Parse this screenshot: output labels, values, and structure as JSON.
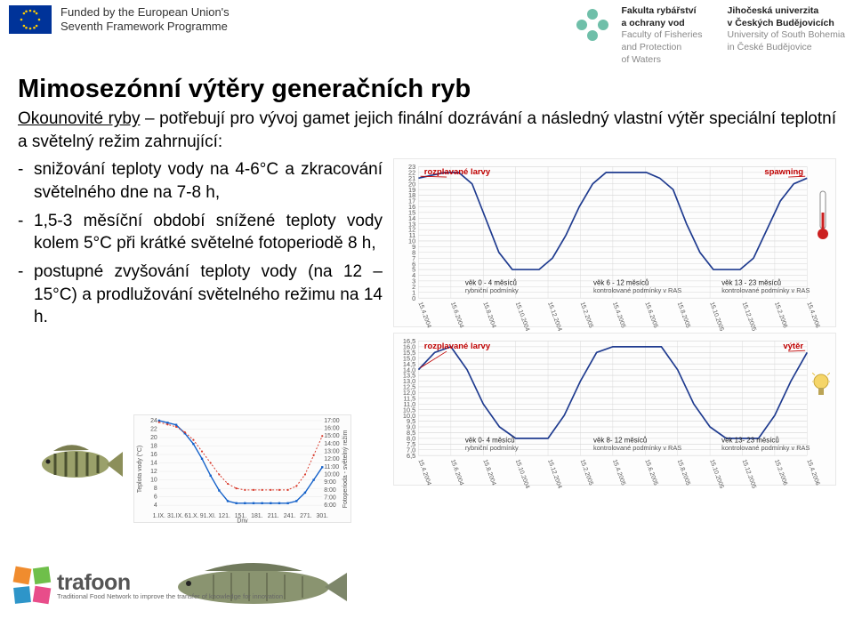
{
  "header": {
    "funded_line1": "Funded by the European Union's",
    "funded_line2": "Seventh Framework Programme",
    "col1_cz1": "Fakulta rybářství",
    "col1_cz2": "a ochrany vod",
    "col1_en1": "Faculty of Fisheries",
    "col1_en2": "and Protection",
    "col1_en3": "of Waters",
    "col2_cz1": "Jihočeská univerzita",
    "col2_cz2": "v Českých Budějovicích",
    "col2_en1": "University of South Bohemia",
    "col2_en2": "in České Budějovice"
  },
  "title": "Mimosezónní výtěry generačních ryb",
  "intro_underline": "Okounovité ryby",
  "intro_rest": " – potřebují pro vývoj gamet jejich finální dozrávání a následný vlastní výtěr speciální teplotní a světelný režim zahrnující:",
  "bullets": [
    "snižování teploty vody na 4-6°C a zkracování světelného dne na 7-8 h,",
    "1,5-3 měsíční období snížené teploty vody kolem 5°C při krátké světelné fotoperiodě 8 h,",
    "postupné zvyšování teploty vody (na 12 – 15°C) a prodlužování světelného režimu na 14 h."
  ],
  "chart_top": {
    "type": "line",
    "title_left": "rozplavané larvy",
    "title_right": "spawning",
    "y_ticks": [
      0,
      1,
      2,
      3,
      4,
      5,
      6,
      7,
      8,
      9,
      10,
      11,
      12,
      13,
      14,
      15,
      16,
      17,
      18,
      19,
      20,
      21,
      22,
      23
    ],
    "x_labels": [
      "15.4.2004",
      "15.6.2004",
      "15.8.2004",
      "15.10.2004",
      "15.12.2004",
      "15.2.2005",
      "15.4.2005",
      "15.6.2005",
      "15.8.2005",
      "15.10.2005",
      "15.12.2005",
      "15.2.2006",
      "15.4.2006"
    ],
    "series_color": "#1f3b8f",
    "series": [
      21,
      21.5,
      22,
      22,
      20,
      14,
      8,
      5,
      5,
      5,
      7,
      11,
      16,
      20,
      22,
      22,
      22,
      22,
      21,
      19,
      13,
      8,
      5,
      5,
      5,
      7,
      12,
      17,
      20,
      21
    ],
    "phase1_top": "věk 0 - 4 měsíců",
    "phase1_bot": "rybniční podmínky",
    "phase2_top": "věk 6 - 12 měsíců",
    "phase2_bot": "kontrolované podmínky v RAS",
    "phase3_top": "věk 13 - 23 měsíců",
    "phase3_bot": "kontrolované podmínky v RAS",
    "grid_color": "#d6d6d6",
    "background": "#fdfdfd"
  },
  "chart_bot": {
    "type": "line",
    "title_left": "rozplavané larvy",
    "title_right": "výtěr",
    "y_ticks": [
      "6,5",
      "7,0",
      "7,5",
      "8,0",
      "8,5",
      "9,0",
      "9,5",
      "10,0",
      "10,5",
      "11,0",
      "11,5",
      "12,0",
      "12,5",
      "13,0",
      "13,5",
      "14,0",
      "14,5",
      "15,0",
      "15,5",
      "16,0",
      "16,5"
    ],
    "x_labels": [
      "15.4.2004",
      "15.6.2004",
      "15.8.2004",
      "15.10.2004",
      "15.12.2004",
      "15.2.2005",
      "15.4.2005",
      "15.6.2005",
      "15.8.2005",
      "15.10.2005",
      "15.12.2005",
      "15.2.2006",
      "15.4.2006"
    ],
    "series_color": "#1f3b8f",
    "series": [
      14,
      15.5,
      16,
      14,
      11,
      9,
      8,
      8,
      8,
      10,
      13,
      15.5,
      16,
      16,
      16,
      16,
      14,
      11,
      9,
      8,
      8,
      8,
      10,
      13,
      15.5
    ],
    "phase1_top": "věk 0- 4 měsíců",
    "phase1_bot": "rybniční podmínky",
    "phase2_top": "věk 8- 12 měsíců",
    "phase2_bot": "kontrolované podmínky v RAS",
    "phase3_top": "věk 13- 23 měsíců",
    "phase3_bot": "kontrolované podmínky v RAS",
    "grid_color": "#d6d6d6",
    "background": "#fdfdfd"
  },
  "chart_inline": {
    "type": "dual-line",
    "y_left_label": "Teplota vody (°C)",
    "y_left_ticks": [
      4,
      6,
      8,
      10,
      12,
      14,
      16,
      18,
      20,
      22,
      24
    ],
    "y_right_label": "Fotoperioda - světelný režim",
    "y_right_ticks": [
      "6:00",
      "7:00",
      "8:00",
      "9:00",
      "10:00",
      "11:00",
      "12:00",
      "13:00",
      "14:00",
      "15:00",
      "16:00",
      "17:00"
    ],
    "x_label": "Dny",
    "x_ticks": [
      "1.IX.",
      "31.IX.",
      "61.X.",
      "91.XI.",
      "121.",
      "151.",
      "181.",
      "211.",
      "241.",
      "271.",
      "301."
    ],
    "blue_color": "#1461c9",
    "red_color": "#d83a2b",
    "blue_series": [
      24,
      23.5,
      23,
      21,
      18.5,
      15,
      11,
      7.5,
      5,
      4.5,
      4.5,
      4.5,
      4.5,
      4.5,
      4.5,
      4.5,
      5,
      7,
      10,
      13
    ],
    "red_series": [
      16.8,
      16.5,
      16.2,
      15.5,
      14.5,
      13,
      11.5,
      10,
      8.8,
      8.2,
      8,
      8,
      8,
      8,
      8,
      8,
      8.5,
      10,
      12.5,
      15
    ],
    "background": "#fcfcfc",
    "grid_color": "#e4e4e4"
  },
  "trafoon": {
    "name": "trafoon",
    "tag": "Traditional Food Network to improve the transfer of knowledge for innovation"
  },
  "colors": {
    "eu_blue": "#003399",
    "eu_gold": "#ffcc00",
    "flower": "#6fbfa9",
    "trafoon_sq": [
      "#f08c2e",
      "#6fbf4a",
      "#2e95c9",
      "#e84d8a"
    ]
  }
}
